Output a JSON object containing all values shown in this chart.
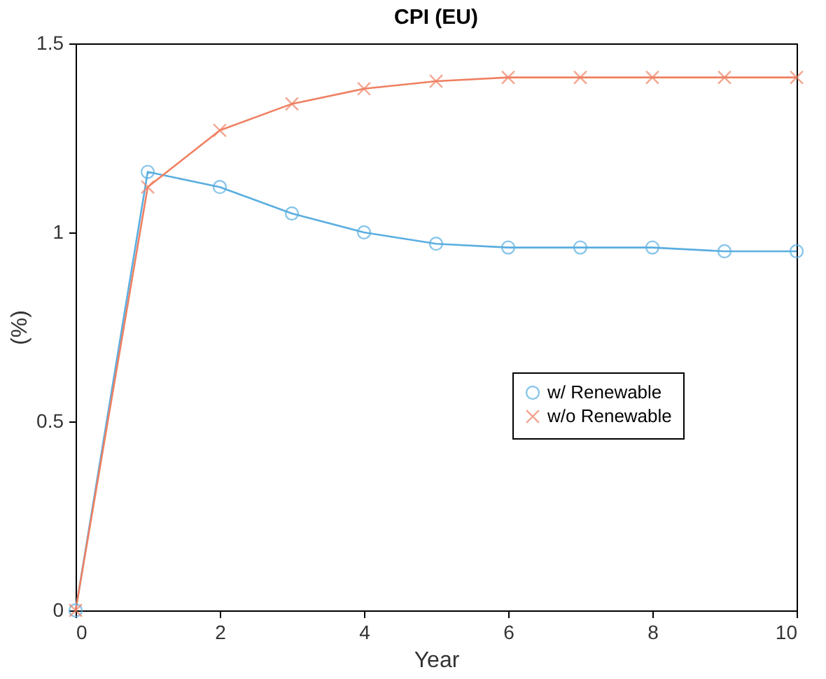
{
  "chart_data": {
    "type": "line",
    "title": "CPI (EU)",
    "xlabel": "Year",
    "ylabel": "(%)",
    "x": [
      0,
      1,
      2,
      3,
      4,
      5,
      6,
      7,
      8,
      9,
      10
    ],
    "series": [
      {
        "name": "w/ Renewable",
        "color": "#5aaee0",
        "marker": "circle",
        "values": [
          0,
          1.16,
          1.12,
          1.05,
          1.0,
          0.97,
          0.96,
          0.96,
          0.96,
          0.95,
          0.95
        ]
      },
      {
        "name": "w/o Renewable",
        "color": "#ef8062",
        "marker": "cross",
        "values": [
          0,
          1.12,
          1.27,
          1.34,
          1.38,
          1.4,
          1.41,
          1.41,
          1.41,
          1.41,
          1.41
        ]
      }
    ],
    "xlim": [
      0,
      10
    ],
    "xticks": [
      0,
      2,
      4,
      6,
      8,
      10
    ],
    "ylim": [
      0,
      1.5
    ],
    "yticks": [
      0,
      0.5,
      1,
      1.5
    ],
    "grid": false,
    "legend": "right",
    "line_style": "solid"
  }
}
